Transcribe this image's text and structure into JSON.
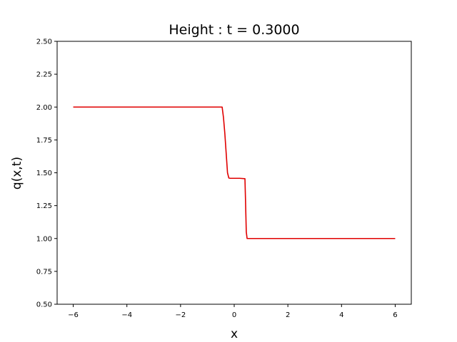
{
  "chart_data": {
    "type": "line",
    "title": "Height : t = 0.3000",
    "xlabel": "x",
    "ylabel": "q(x,t)",
    "xlim": [
      -6.6,
      6.6
    ],
    "ylim": [
      0.5,
      2.5
    ],
    "xticks": [
      -6,
      -4,
      -2,
      0,
      2,
      4,
      6
    ],
    "xtick_labels": [
      "−6",
      "−4",
      "−2",
      "0",
      "2",
      "4",
      "6"
    ],
    "yticks": [
      0.5,
      0.75,
      1.0,
      1.25,
      1.5,
      1.75,
      2.0,
      2.25,
      2.5
    ],
    "ytick_labels": [
      "0.50",
      "0.75",
      "1.00",
      "1.25",
      "1.50",
      "1.75",
      "2.00",
      "2.25",
      "2.50"
    ],
    "grid": false,
    "series": [
      {
        "color": "#e00000",
        "x": [
          -6.0,
          -0.45,
          -0.4,
          -0.35,
          -0.3,
          -0.25,
          -0.2,
          -0.15,
          0.0,
          0.2,
          0.4,
          0.42,
          0.45,
          0.48,
          6.0
        ],
        "y": [
          2.0,
          2.0,
          1.92,
          1.8,
          1.65,
          1.5,
          1.46,
          1.458,
          1.458,
          1.458,
          1.455,
          1.3,
          1.05,
          1.0,
          1.0
        ]
      }
    ]
  }
}
